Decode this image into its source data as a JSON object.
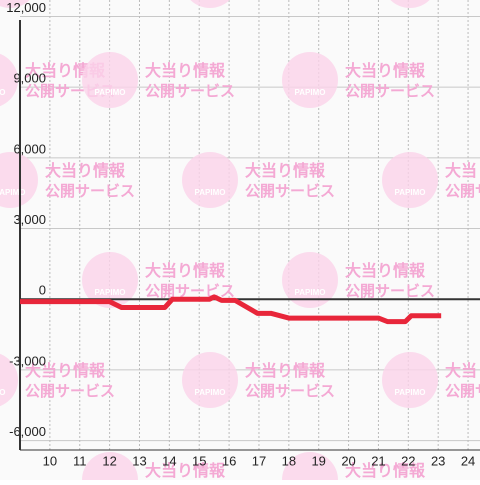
{
  "chart_data": {
    "type": "line",
    "watermark": {
      "brand": "PAPIMO",
      "line1": "大当り情報",
      "line2": "公開サービス"
    },
    "x": [
      9.0,
      12.0,
      12.4,
      13.85,
      14.1,
      15.35,
      15.5,
      15.75,
      16.2,
      16.95,
      17.4,
      18.0,
      21.0,
      21.3,
      21.9,
      22.1,
      23.1
    ],
    "series": [
      {
        "color": "#e8263a",
        "values": [
          -100,
          -100,
          -350,
          -350,
          0,
          0,
          100,
          -50,
          -50,
          -600,
          -600,
          -800,
          -800,
          -950,
          -950,
          -700,
          -700
        ]
      }
    ],
    "xlim": [
      9,
      24.4
    ],
    "xticks": [
      10,
      11,
      12,
      13,
      14,
      15,
      16,
      17,
      18,
      19,
      20,
      21,
      22,
      23,
      24
    ],
    "ylim": [
      -6400,
      12700
    ],
    "yticks": [
      {
        "value": -6000,
        "label": "-6,000"
      },
      {
        "value": -3000,
        "label": "-3,000"
      },
      0,
      {
        "value": 3000,
        "label": "3,000"
      },
      {
        "value": 6000,
        "label": "6,000"
      },
      {
        "value": 9000,
        "label": "9,000"
      },
      {
        "value": 12000,
        "label": "12,000"
      }
    ],
    "grid": true
  }
}
